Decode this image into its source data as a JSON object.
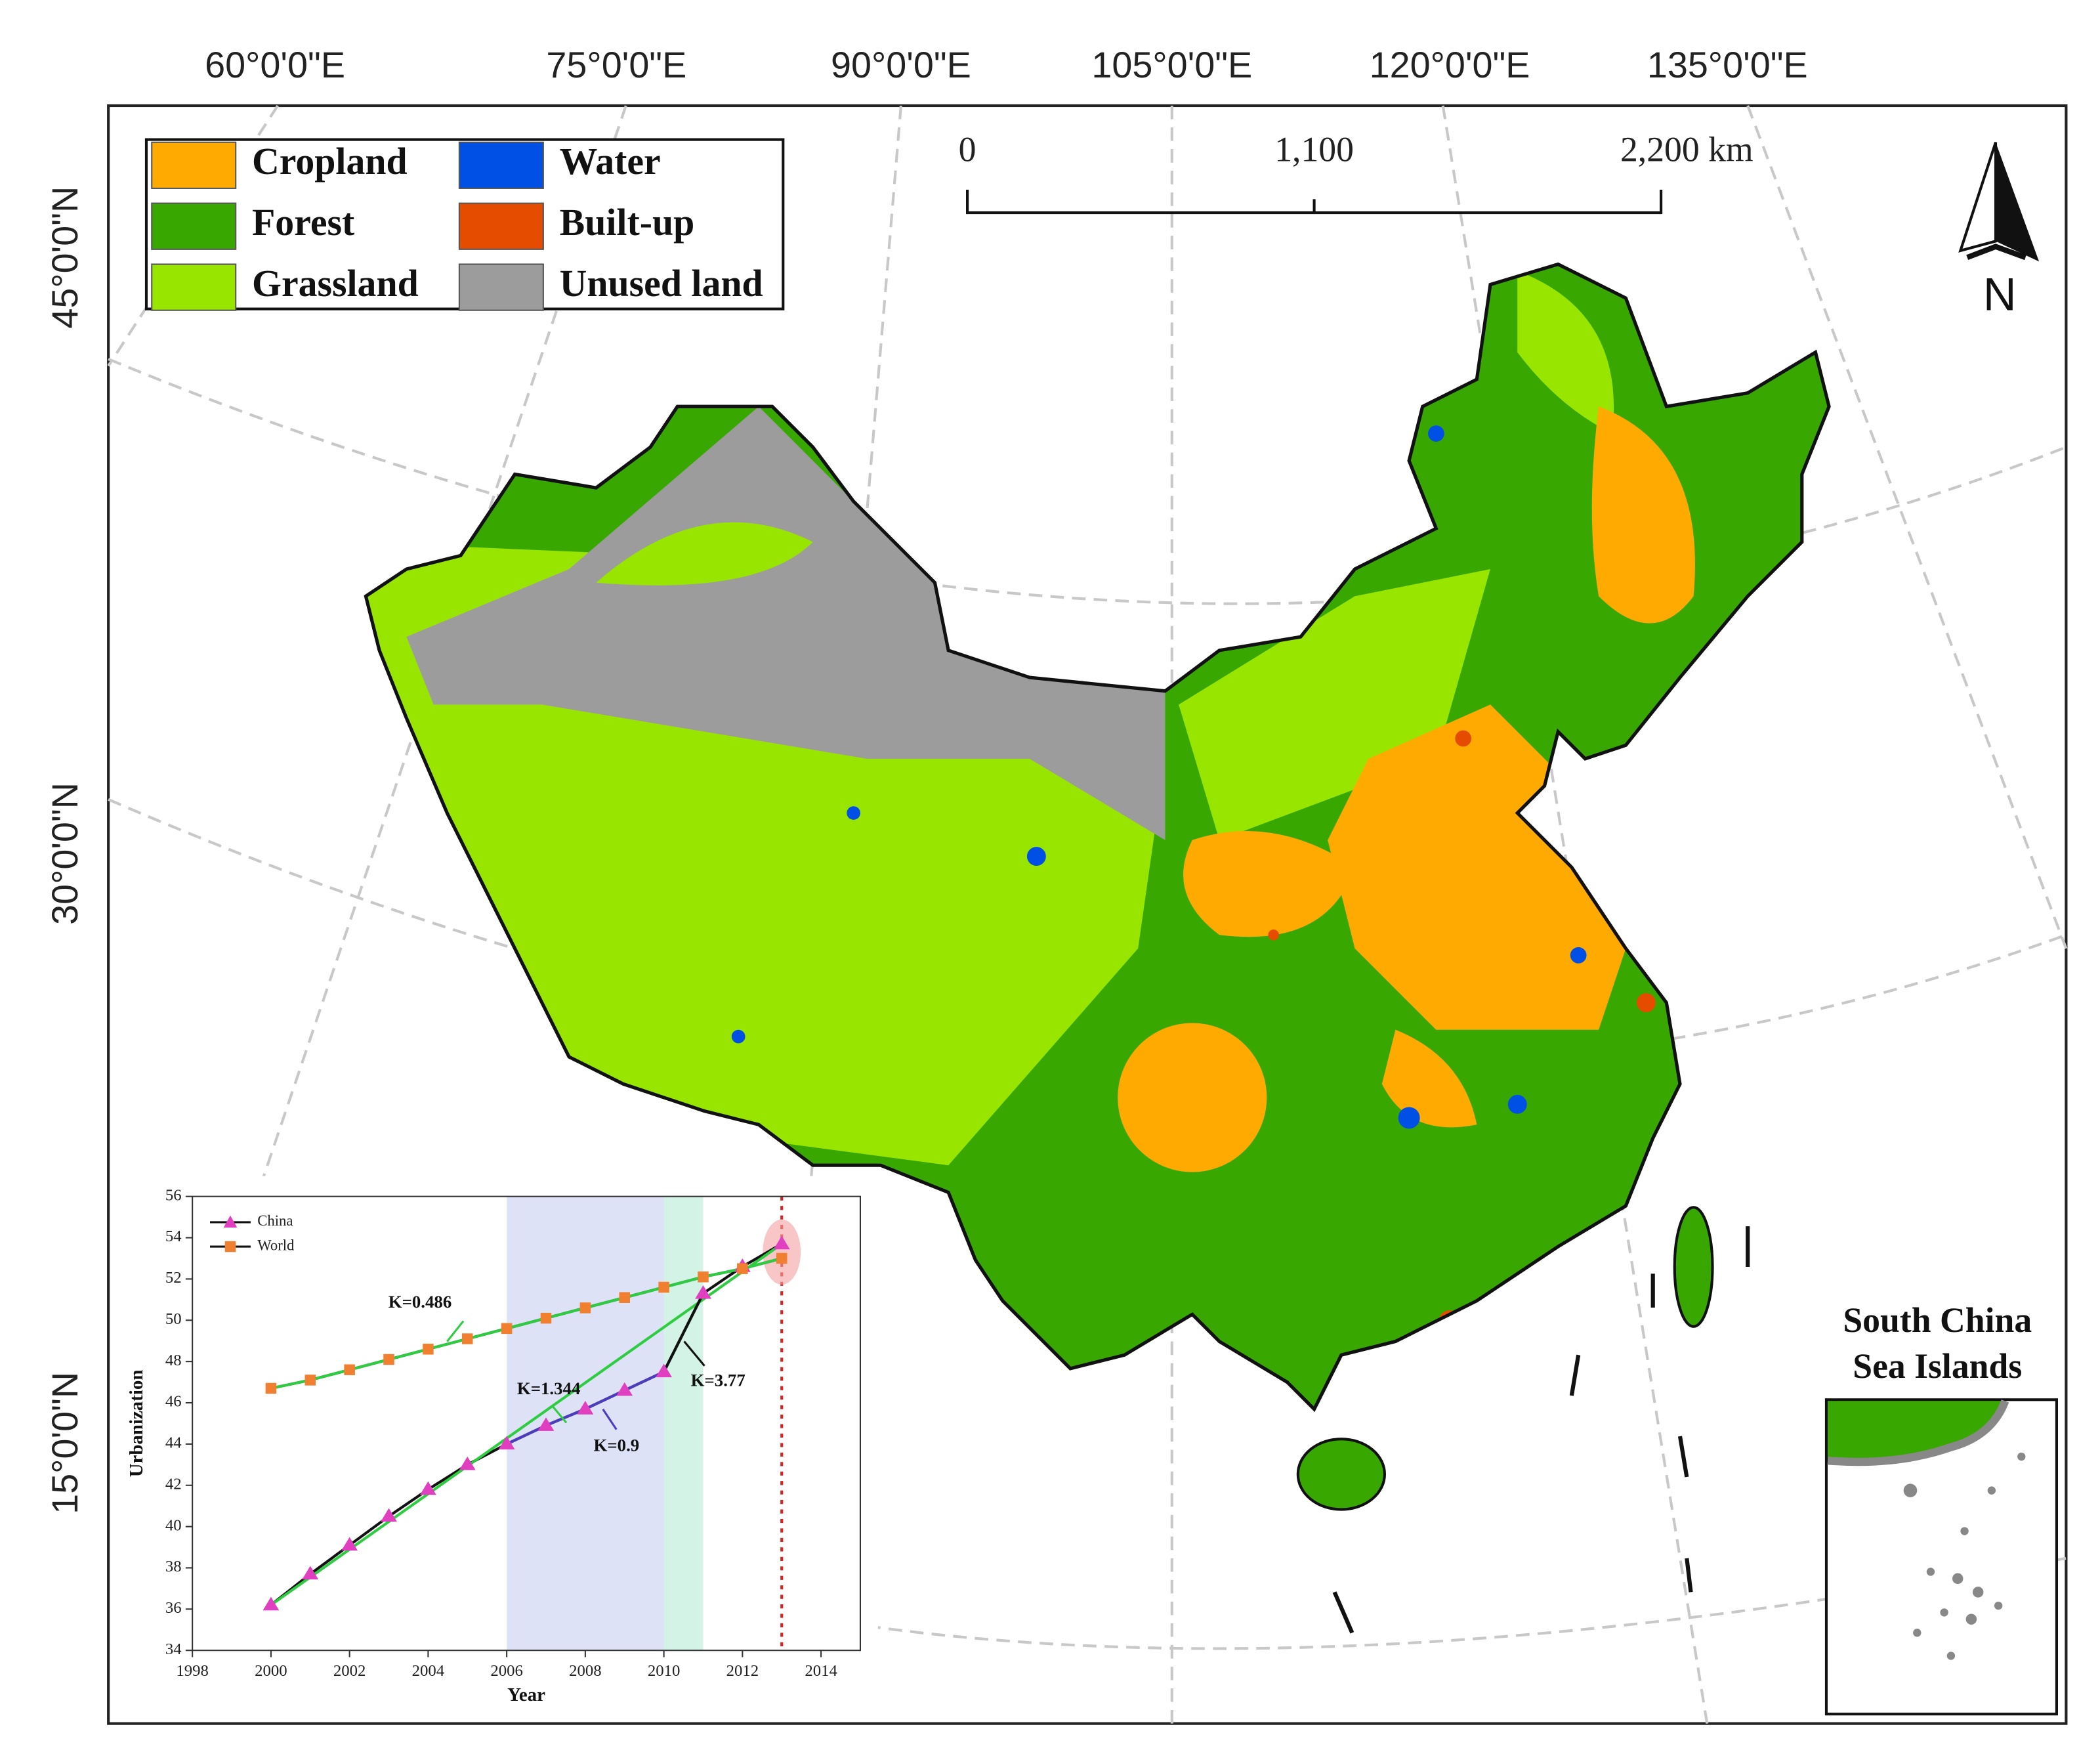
{
  "map": {
    "graticule": {
      "lon": [
        "60°0'0\"E",
        "75°0'0\"E",
        "90°0'0\"E",
        "105°0'0\"E",
        "120°0'0\"E",
        "135°0'0\"E"
      ],
      "lat": [
        "45°0'0\"N",
        "30°0'0\"N",
        "15°0'0\"N"
      ]
    },
    "legend": [
      {
        "label": "Cropland",
        "color": "#ffaa00"
      },
      {
        "label": "Forest",
        "color": "#38a800"
      },
      {
        "label": "Grassland",
        "color": "#98e600"
      },
      {
        "label": "Water",
        "color": "#0050e6"
      },
      {
        "label": "Built-up",
        "color": "#e64c00"
      },
      {
        "label": "Unused land",
        "color": "#9c9c9c"
      }
    ],
    "scale_bar": [
      "0",
      "1,100",
      "2,200 km"
    ],
    "north": "N",
    "inset_title": [
      "South China",
      "Sea Islands"
    ]
  },
  "chart_data": {
    "type": "line",
    "x_label": "Year",
    "y_label": "Urbanization",
    "x": [
      2000,
      2001,
      2002,
      2003,
      2004,
      2005,
      2006,
      2007,
      2008,
      2009,
      2010,
      2011,
      2012,
      2013
    ],
    "series": [
      {
        "name": "China",
        "color": "#e040c0",
        "values": [
          36.2,
          37.7,
          39.1,
          40.5,
          41.8,
          43.0,
          44.0,
          44.9,
          45.7,
          46.6,
          47.5,
          51.3,
          52.6,
          53.7
        ]
      },
      {
        "name": "World",
        "color": "#f08030",
        "values": [
          46.7,
          47.1,
          47.6,
          48.1,
          48.6,
          49.1,
          49.6,
          50.1,
          50.6,
          51.1,
          51.6,
          52.1,
          52.5,
          53.0
        ]
      }
    ],
    "annotations": [
      "K=0.486",
      "K=1.344",
      "K=0.9",
      "K=3.77"
    ],
    "highlights": [
      {
        "x": [
          2006,
          2010
        ],
        "color": "#dde2f6"
      },
      {
        "x": [
          2010,
          2011
        ],
        "color": "#d2f3e6"
      }
    ],
    "marker_line": {
      "x": 2013,
      "color": "#e02020"
    },
    "xlim": [
      1998,
      2015
    ],
    "ylim": [
      34,
      56
    ],
    "xticks": [
      1998,
      2000,
      2002,
      2004,
      2006,
      2008,
      2010,
      2012,
      2014
    ],
    "yticks": [
      34,
      36,
      38,
      40,
      42,
      44,
      46,
      48,
      50,
      52,
      54,
      56
    ]
  }
}
